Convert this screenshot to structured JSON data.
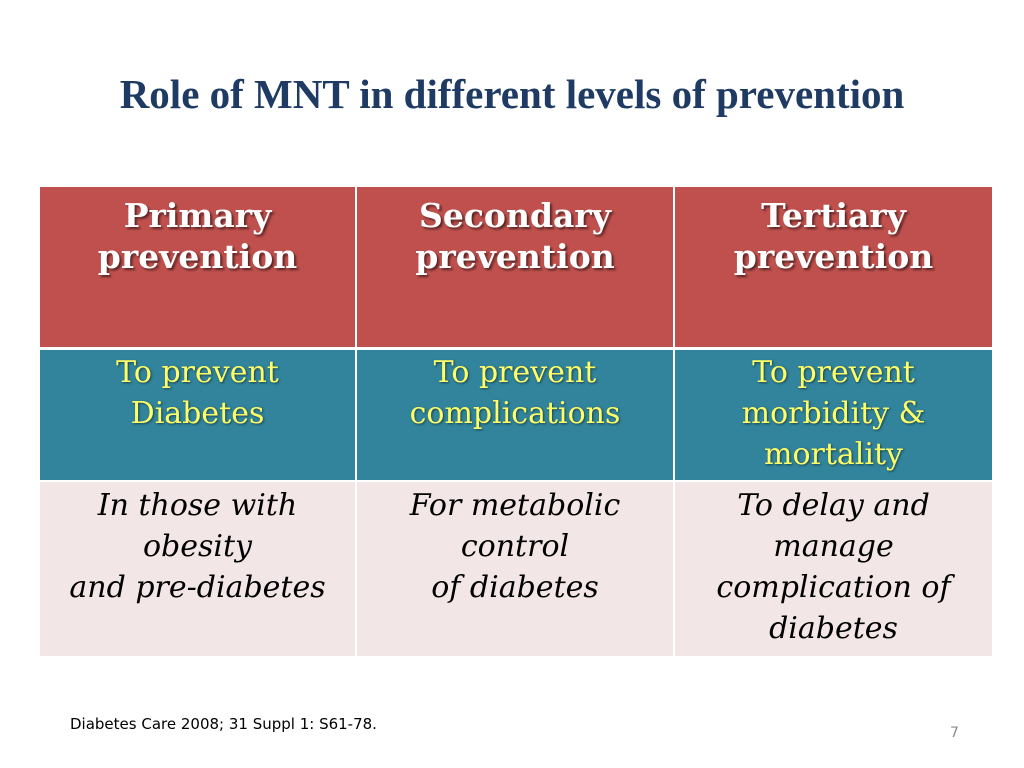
{
  "slide": {
    "title": "Role of MNT in different levels of prevention",
    "columns": [
      {
        "header": [
          "Primary",
          "prevention"
        ],
        "aim": [
          "To prevent",
          "Diabetes"
        ],
        "target": [
          "In those with obesity",
          "and pre-diabetes"
        ]
      },
      {
        "header": [
          "Secondary",
          "prevention"
        ],
        "aim": [
          "To prevent",
          "complications"
        ],
        "target": [
          "For metabolic control",
          "of diabetes"
        ]
      },
      {
        "header": [
          "Tertiary",
          "prevention"
        ],
        "aim": [
          "To prevent",
          "morbidity &",
          "mortality"
        ],
        "target": [
          "To delay and manage",
          "complication of",
          "diabetes"
        ]
      }
    ],
    "reference": "Diabetes Care 2008; 31 Suppl 1: S61-78.",
    "page_number": "7"
  },
  "colors": {
    "title": "#1f3b63",
    "header_bg": "#c0504d",
    "aim_bg": "#31849b",
    "aim_text": "#ffff66",
    "target_bg": "#f2e6e6"
  }
}
